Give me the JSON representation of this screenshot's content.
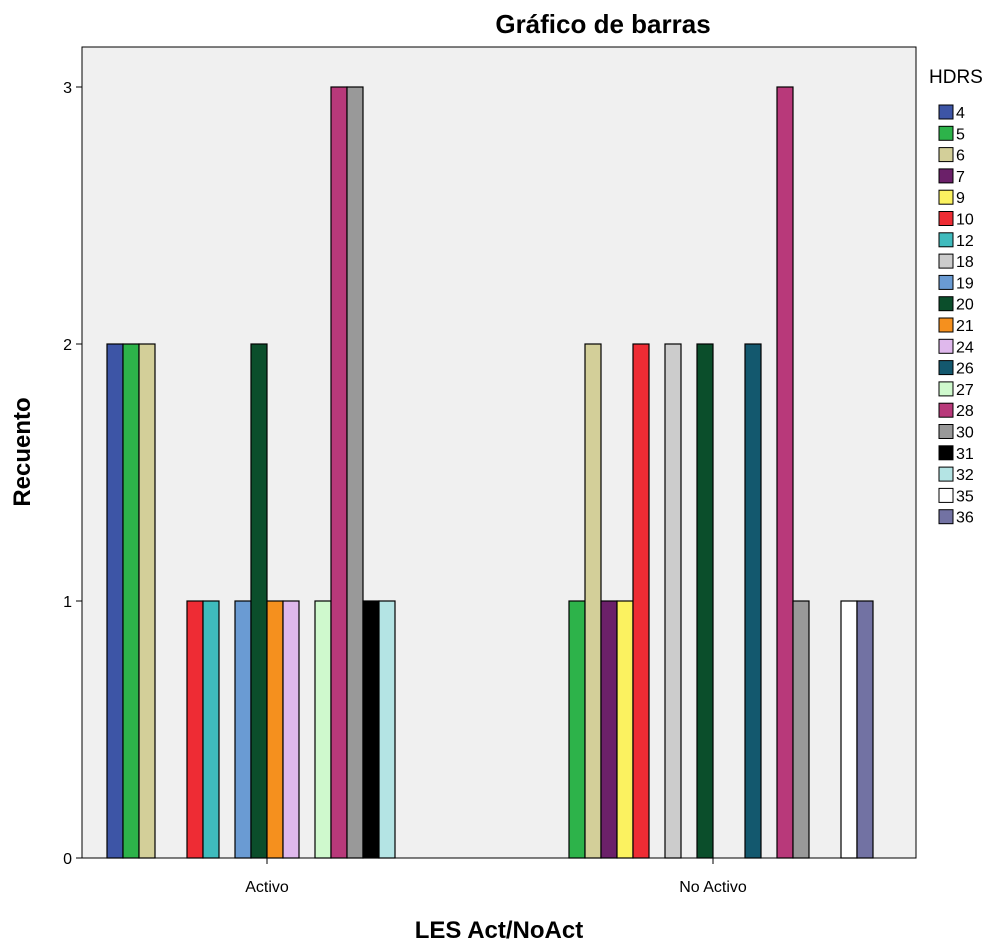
{
  "chart_data": {
    "type": "bar",
    "title": "Gráfico de barras",
    "xlabel": "LES Act/NoAct",
    "ylabel": "Recuento",
    "categories": [
      "Activo",
      "No Activo"
    ],
    "ylim": [
      0,
      3.3
    ],
    "yticks": [
      0,
      1,
      2,
      3
    ],
    "grid": false,
    "legend_title": "HDRS",
    "legend_position": "right",
    "series": [
      {
        "name": "4",
        "color": "#3d55a6",
        "values": [
          2,
          0
        ]
      },
      {
        "name": "5",
        "color": "#2db34a",
        "values": [
          2,
          1
        ]
      },
      {
        "name": "6",
        "color": "#d3cf99",
        "values": [
          2,
          2
        ]
      },
      {
        "name": "7",
        "color": "#6b2069",
        "values": [
          0,
          1
        ]
      },
      {
        "name": "9",
        "color": "#fbf260",
        "values": [
          0,
          1
        ]
      },
      {
        "name": "10",
        "color": "#ee2c34",
        "values": [
          1,
          2
        ]
      },
      {
        "name": "12",
        "color": "#3fbbbd",
        "values": [
          1,
          0
        ]
      },
      {
        "name": "18",
        "color": "#cccccc",
        "values": [
          0,
          2
        ]
      },
      {
        "name": "19",
        "color": "#6a9bd3",
        "values": [
          1,
          0
        ]
      },
      {
        "name": "20",
        "color": "#0b4e2b",
        "values": [
          2,
          2
        ]
      },
      {
        "name": "21",
        "color": "#f5901e",
        "values": [
          1,
          0
        ]
      },
      {
        "name": "24",
        "color": "#dfb8ec",
        "values": [
          1,
          0
        ]
      },
      {
        "name": "26",
        "color": "#13586e",
        "values": [
          0,
          2
        ]
      },
      {
        "name": "27",
        "color": "#cff9cd",
        "values": [
          1,
          0
        ]
      },
      {
        "name": "28",
        "color": "#b8397a",
        "values": [
          3,
          3
        ]
      },
      {
        "name": "30",
        "color": "#999999",
        "values": [
          3,
          1
        ]
      },
      {
        "name": "31",
        "color": "#000000",
        "values": [
          1,
          0
        ]
      },
      {
        "name": "32",
        "color": "#b4e4e4",
        "values": [
          1,
          0
        ]
      },
      {
        "name": "35",
        "color": "#ffffff",
        "values": [
          0,
          1
        ]
      },
      {
        "name": "36",
        "color": "#7272a3",
        "values": [
          0,
          1
        ]
      }
    ]
  }
}
